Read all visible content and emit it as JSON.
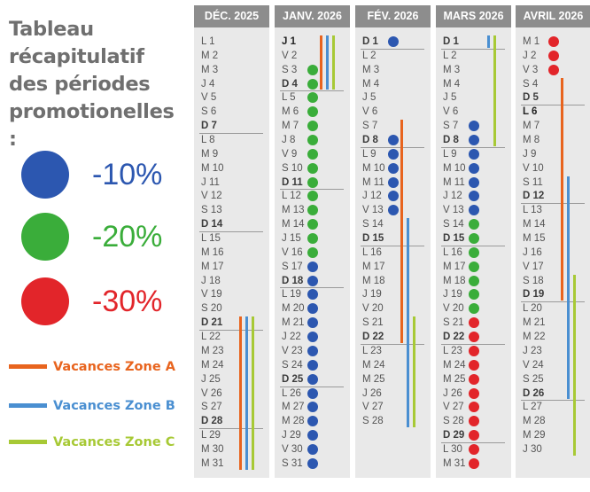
{
  "title": "Tableau récapitulatif des périodes promotionelles :",
  "legend": [
    {
      "label": "-10%",
      "color": "#2c57b0"
    },
    {
      "label": "-20%",
      "color": "#3aad3a"
    },
    {
      "label": "-30%",
      "color": "#e2252a"
    }
  ],
  "vacances": [
    {
      "label": "Vacances Zone A",
      "color": "#e8641e"
    },
    {
      "label": "Vacances Zone B",
      "color": "#4a8fd1"
    },
    {
      "label": "Vacances Zone C",
      "color": "#a7c935"
    }
  ],
  "months": [
    {
      "name": "DÉC. 2025",
      "start_dow": 0,
      "days": 31,
      "promos": [],
      "zones": [
        {
          "zone": "A",
          "from": 21,
          "to": 31
        },
        {
          "zone": "B",
          "from": 21,
          "to": 31
        },
        {
          "zone": "C",
          "from": 21,
          "to": 31
        }
      ]
    },
    {
      "name": "JANV. 2026",
      "start_dow": 3,
      "days": 31,
      "bold_days": [
        1
      ],
      "promos": [
        {
          "from": 3,
          "to": 16,
          "level": 1
        },
        {
          "from": 17,
          "to": 31,
          "level": 0
        }
      ],
      "zones": [
        {
          "zone": "A",
          "from": 1,
          "to": 4
        },
        {
          "zone": "B",
          "from": 1,
          "to": 4
        },
        {
          "zone": "C",
          "from": 1,
          "to": 4
        }
      ]
    },
    {
      "name": "FÉV. 2026",
      "start_dow": 6,
      "days": 28,
      "promos": [
        {
          "from": 1,
          "to": 1,
          "level": 0
        },
        {
          "from": 8,
          "to": 13,
          "level": 0
        }
      ],
      "zones": [
        {
          "zone": "A",
          "from": 7,
          "to": 22
        },
        {
          "zone": "B",
          "from": 14,
          "to": 28
        },
        {
          "zone": "C",
          "from": 21,
          "to": 28
        }
      ]
    },
    {
      "name": "MARS 2026",
      "start_dow": 6,
      "days": 31,
      "promos": [
        {
          "from": 7,
          "to": 13,
          "level": 0
        },
        {
          "from": 14,
          "to": 20,
          "level": 1
        },
        {
          "from": 21,
          "to": 31,
          "level": 2
        }
      ],
      "zones": [
        {
          "zone": "B",
          "from": 1,
          "to": 1
        },
        {
          "zone": "C",
          "from": 1,
          "to": 8
        }
      ]
    },
    {
      "name": "AVRIL 2026",
      "start_dow": 2,
      "days": 30,
      "bold_days": [
        6
      ],
      "promos": [
        {
          "from": 1,
          "to": 3,
          "level": 2
        }
      ],
      "zones": [
        {
          "zone": "A",
          "from": 4,
          "to": 19
        },
        {
          "zone": "B",
          "from": 11,
          "to": 26
        },
        {
          "zone": "C",
          "from": 18,
          "to": 30
        }
      ]
    }
  ],
  "day_letters": [
    "L",
    "M",
    "M",
    "J",
    "V",
    "S",
    "D"
  ]
}
